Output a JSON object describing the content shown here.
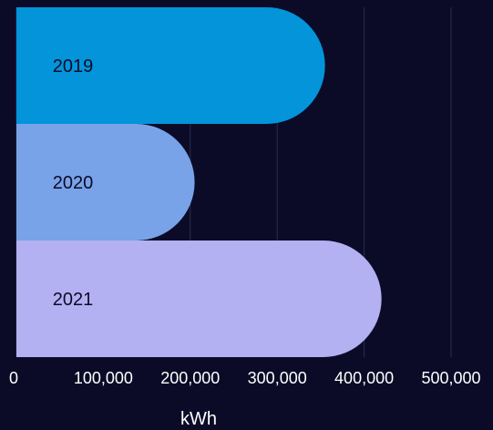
{
  "chart_data": {
    "type": "bar",
    "orientation": "horizontal",
    "categories": [
      "2019",
      "2020",
      "2021"
    ],
    "values": [
      355000,
      205000,
      420000
    ],
    "xlabel": "kWh",
    "ylabel": "",
    "xlim": [
      0,
      500000
    ],
    "xticks": [
      "0",
      "100,000",
      "200,000",
      "300,000",
      "400,000",
      "500,000"
    ],
    "grid": "vertical",
    "bar_colors": [
      "#0394da",
      "#79a3e8",
      "#b3b1f2"
    ]
  },
  "colors": {
    "background": "#0b0b28",
    "gridline": "#2b2b4d",
    "tick_label": "#ffffff",
    "bar_label": "#0b0b28"
  }
}
